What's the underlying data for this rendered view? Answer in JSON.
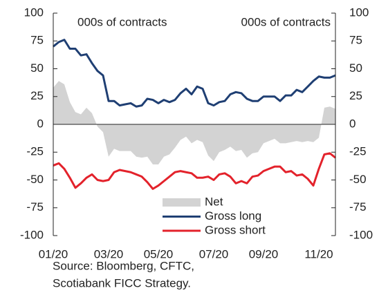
{
  "chart_data": {
    "type": "line",
    "annotations": [
      "000s of contracts",
      "000s of contracts"
    ],
    "source": [
      "Source: Bloomberg, CFTC,",
      "Scotiabank FICC  Strategy."
    ],
    "categories": [
      "01/20",
      null,
      null,
      null,
      null,
      null,
      null,
      null,
      null,
      null,
      "03/20",
      null,
      null,
      null,
      null,
      null,
      null,
      null,
      null,
      "05/20",
      null,
      null,
      null,
      null,
      null,
      null,
      null,
      null,
      null,
      "07/20",
      null,
      null,
      null,
      null,
      null,
      null,
      null,
      null,
      "09/20",
      null,
      null,
      null,
      null,
      null,
      null,
      null,
      null,
      null,
      "11/20",
      null,
      null,
      null
    ],
    "series": [
      {
        "name": "Net",
        "color": "#d3d3d3",
        "style": "area",
        "values": [
          33,
          39,
          36,
          20,
          11,
          9,
          15,
          10,
          -2,
          -7,
          -29,
          -22,
          -24,
          -24,
          -24,
          -29,
          -30,
          -29,
          -36,
          -36,
          -29,
          -27,
          -21,
          -14,
          -11,
          -17,
          -14,
          -16,
          -28,
          -33,
          -25,
          -23,
          -20,
          -24,
          -23,
          -30,
          -26,
          -25,
          -17,
          -15,
          -13,
          -17,
          -17,
          -16,
          -15,
          -16,
          -15,
          -16,
          -12,
          15,
          16,
          14
        ]
      },
      {
        "name": "Gross long",
        "color": "#1f3f73",
        "style": "line",
        "values": [
          70,
          74,
          76,
          68,
          68,
          62,
          63,
          55,
          48,
          44,
          21,
          21,
          17,
          18,
          19,
          16,
          17,
          23,
          22,
          19,
          22,
          20,
          22,
          28,
          32,
          27,
          34,
          32,
          19,
          17,
          20,
          21,
          27,
          29,
          28,
          23,
          21,
          21,
          25,
          25,
          25,
          21,
          26,
          26,
          31,
          29,
          34,
          39,
          43,
          42,
          42,
          44
        ]
      },
      {
        "name": "Gross short",
        "color": "#e3222b",
        "style": "line",
        "values": [
          -37,
          -35,
          -40,
          -48,
          -57,
          -53,
          -48,
          -45,
          -50,
          -51,
          -50,
          -43,
          -41,
          -42,
          -43,
          -45,
          -47,
          -52,
          -58,
          -55,
          -51,
          -47,
          -43,
          -42,
          -43,
          -44,
          -48,
          -48,
          -47,
          -50,
          -45,
          -44,
          -47,
          -53,
          -51,
          -53,
          -47,
          -46,
          -42,
          -40,
          -38,
          -38,
          -43,
          -42,
          -46,
          -45,
          -49,
          -55,
          -40,
          -27,
          -26,
          -30
        ]
      }
    ],
    "ylim": [
      -100,
      100
    ],
    "yticks": [
      -100,
      -75,
      -50,
      -25,
      0,
      25,
      50,
      75,
      100
    ],
    "y2lim": [
      -100,
      100
    ],
    "y2ticks": [
      -100,
      -75,
      -50,
      -25,
      0,
      25,
      50,
      75,
      100
    ]
  }
}
